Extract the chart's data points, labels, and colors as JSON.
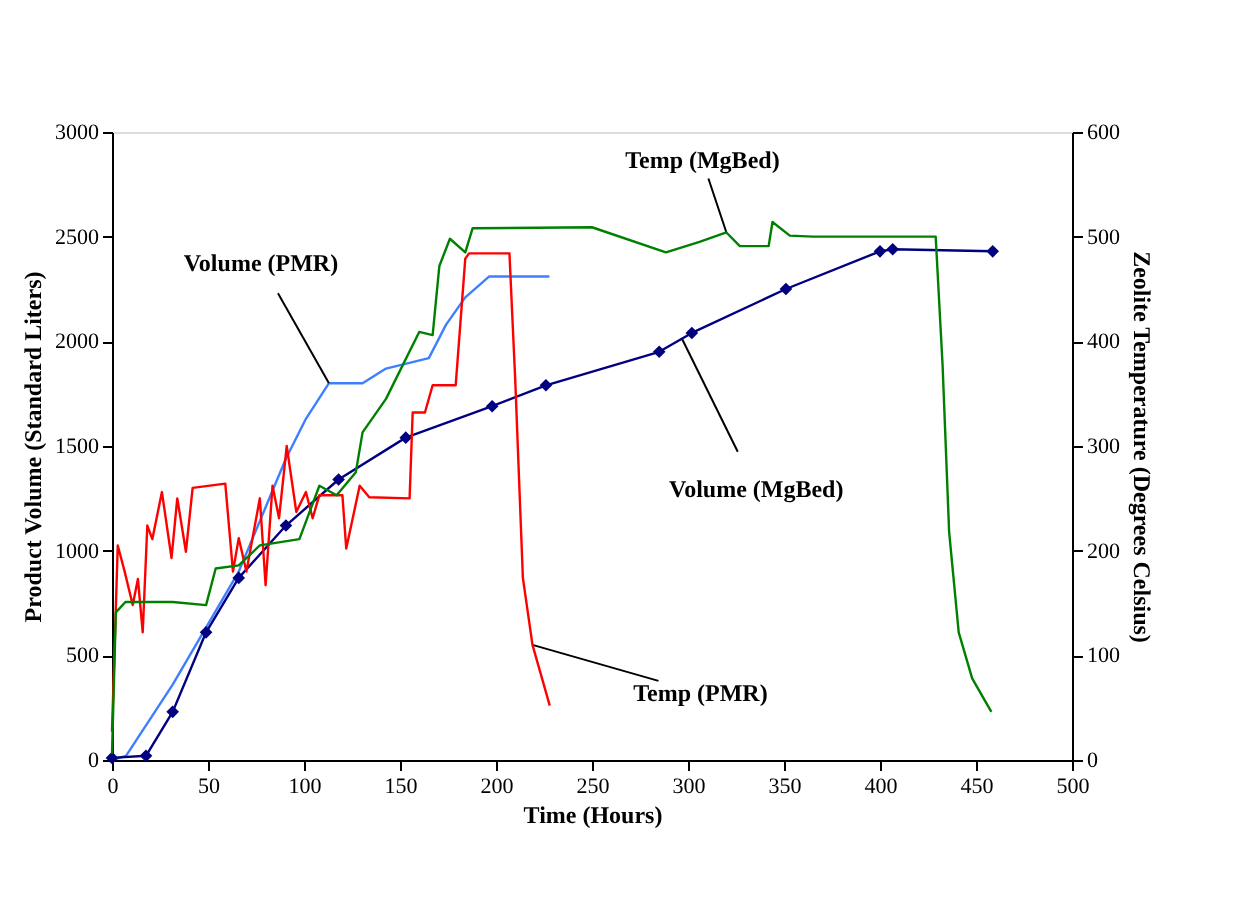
{
  "chart_data": {
    "type": "line",
    "xlabel": "Time (Hours)",
    "ylabel": "Product Volume (Standard Liters)",
    "y2label": "Zeolite Temperature (Degrees Celsius)",
    "xlim": [
      0,
      500
    ],
    "xticks": [
      0,
      50,
      100,
      150,
      200,
      250,
      300,
      350,
      400,
      450,
      500
    ],
    "ylim": [
      0,
      3000
    ],
    "yticks": [
      0,
      500,
      1000,
      1500,
      2000,
      2500,
      3000
    ],
    "y2lim": [
      0,
      600
    ],
    "y2ticks": [
      0,
      100,
      200,
      300,
      400,
      500,
      600
    ],
    "grid": false,
    "series": [
      {
        "color": "#3f7fff",
        "marker": "none",
        "x": [
          0,
          7.3,
          31.6,
          66,
          90.6,
          101,
          113,
          130.5,
          142.7,
          165,
          174,
          184,
          196.5,
          227.8
        ],
        "values": [
          0,
          20,
          360,
          900,
          1440,
          1630,
          1800,
          1800,
          1870,
          1920,
          2080,
          2210,
          2310,
          2310
        ]
      },
      {
        "color": "#ff0000",
        "marker": "none",
        "axis": "y2",
        "x": [
          0,
          3,
          6.6,
          10.8,
          13.5,
          16,
          18.4,
          21,
          26,
          31,
          34,
          38.5,
          42,
          59,
          63,
          66,
          70,
          77,
          80,
          83.6,
          87,
          91,
          96,
          101,
          104.5,
          108,
          120,
          122,
          129,
          134,
          155,
          156.6,
          163,
          167,
          179,
          184,
          186,
          207,
          210,
          214,
          219,
          228
        ],
        "values": [
          27,
          205,
          180,
          148,
          173,
          122,
          224,
          211,
          256,
          193,
          250,
          199,
          260,
          264,
          180,
          212,
          180,
          250,
          167,
          262,
          231,
          300,
          237,
          256,
          231,
          253,
          253,
          202,
          262,
          251,
          250,
          332,
          332,
          358,
          358,
          479,
          484,
          484,
          364,
          174,
          110,
          52
        ]
      },
      {
        "color": "#008000",
        "marker": "none",
        "axis": "y2",
        "x": [
          0,
          2,
          7,
          31.6,
          49,
          54,
          66,
          77,
          97.6,
          108,
          117,
          127,
          130.5,
          142.7,
          160,
          167,
          170.5,
          176,
          184,
          187.8,
          250,
          288.5,
          306,
          320,
          327,
          342,
          344,
          353,
          365,
          429,
          432.6,
          436,
          441,
          448,
          458
        ],
        "values": [
          6,
          141,
          151,
          151,
          148,
          183,
          186,
          205,
          211,
          262,
          253,
          275,
          313,
          345,
          409,
          406,
          472,
          498,
          485,
          508,
          509,
          485,
          495,
          504,
          491,
          491,
          514,
          501,
          500,
          500,
          377,
          218,
          122,
          78,
          46
        ]
      },
      {
        "color": "#000080",
        "marker": "diamond",
        "x": [
          0,
          17.7,
          31.6,
          49,
          66,
          90.6,
          118,
          153,
          198,
          226,
          285,
          302,
          351,
          400,
          406.6,
          458.7
        ],
        "values": [
          10,
          20,
          230,
          610,
          870,
          1120,
          1340,
          1540,
          1690,
          1790,
          1950,
          2040,
          2250,
          2430,
          2440,
          2430
        ]
      }
    ],
    "annotations": [
      {
        "text": "Volume (PMR)",
        "x": 113,
        "y": 1800
      },
      {
        "text": "Temp (MgBed)",
        "x": 320,
        "y": 2520
      },
      {
        "text": "Volume (MgBed)",
        "x": 297,
        "y": 2010
      },
      {
        "text": "Temp (PMR)",
        "x": 219,
        "y": 550
      }
    ]
  }
}
